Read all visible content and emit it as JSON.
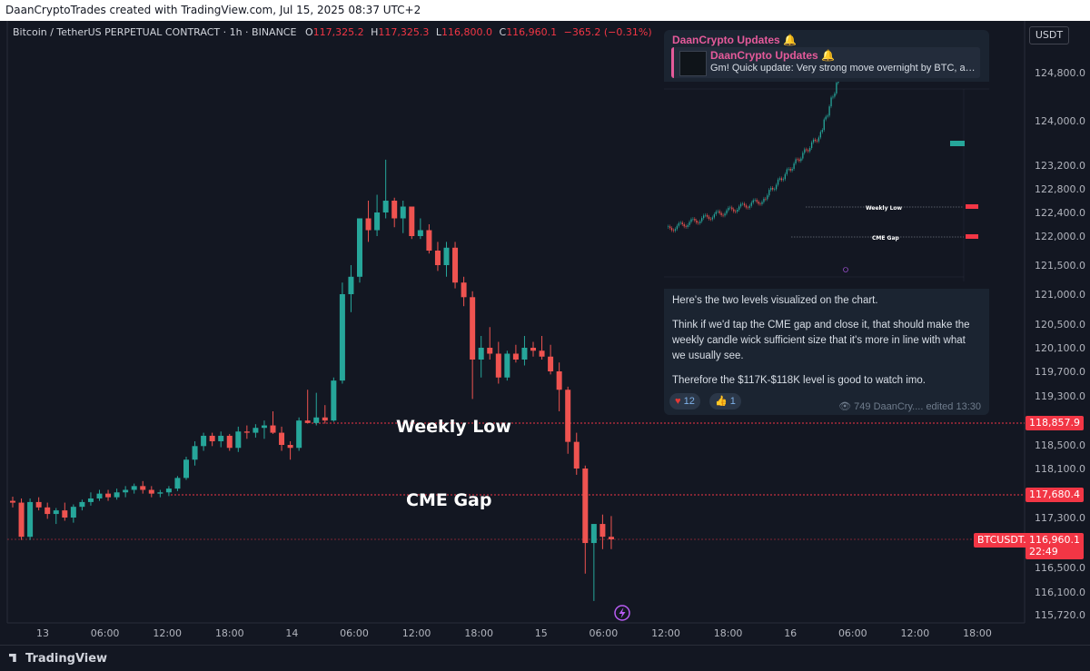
{
  "header": {
    "title": "DaanCryptoTrades created with TradingView.com, Jul 15, 2025 08:37 UTC+2"
  },
  "legend": {
    "symbol": "Bitcoin / TetherUS PERPETUAL CONTRACT · 1h · BINANCE",
    "o_label": "O",
    "o": "117,325.2",
    "h_label": "H",
    "h": "117,325.3",
    "l_label": "L",
    "l": "116,800.0",
    "c_label": "C",
    "c": "116,960.1",
    "change": "−365.2 (−0.31%)"
  },
  "currency_button": "USDT",
  "footer": {
    "brand": "TradingView"
  },
  "annotations": {
    "weekly_low": "Weekly Low",
    "cme_gap": "CME Gap"
  },
  "price_tags": {
    "weekly_low": "118,857.9",
    "cme_gap": "117,680.4",
    "symbol": "BTCUSDT.P",
    "current": "116,960.1",
    "countdown": "22:49"
  },
  "colors": {
    "up": "#26a69a",
    "down": "#ef5350",
    "level": "#f23645",
    "background": "#131722",
    "card_accent": "#e55a9a"
  },
  "icons": {
    "lightning": "lightning-icon",
    "logo": "tradingview-logo-icon",
    "views": "eye-icon",
    "reactions": [
      "heart-icon",
      "thumbs-up-icon"
    ]
  },
  "telegram_card": {
    "channel": "DaanCrypto Updates 🔔",
    "quote_title": "DaanCrypto Updates 🔔",
    "quote_text": "Gm! Quick update:  Very strong move overnight by BTC, al...",
    "message_p1": "Here's the two levels visualized on the chart.",
    "message_p2": "Think if we'd tap the CME gap and close it, that should make the weekly candle wick sufficient size that it's more in line with what we usually see.",
    "message_p3": "Therefore the $117K-$118K level is good to watch imo.",
    "reaction_heart_count": "12",
    "reaction_thumb_count": "1",
    "views": "749",
    "author": "DaanCry....",
    "edited": "edited 13:30",
    "mini_chart_labels": {
      "weekly_low": "Weekly Low",
      "cme_gap": "CME Gap"
    }
  },
  "chart_data": {
    "type": "candlestick",
    "y_ticks": [
      "124,800.0",
      "124,000.0",
      "123,200.0",
      "122,800.0",
      "122,400.0",
      "122,000.0",
      "121,500.0",
      "121,000.0",
      "120,500.0",
      "120,100.0",
      "119,700.0",
      "119,300.0",
      "118,500.0",
      "118,100.0",
      "117,300.0",
      "116,500.0",
      "116,100.0",
      "115,720.0"
    ],
    "x_ticks": [
      "13",
      "06:00",
      "12:00",
      "18:00",
      "14",
      "06:00",
      "12:00",
      "18:00",
      "15",
      "06:00",
      "12:00",
      "18:00",
      "16",
      "06:00",
      "12:00",
      "18:00"
    ],
    "levels": [
      {
        "label": "Weekly Low",
        "value": 118857.9
      },
      {
        "label": "CME Gap",
        "value": 117680.4
      },
      {
        "label": "BTCUSDT.P",
        "value": 116960.1
      }
    ],
    "candles": [
      [
        117580,
        117650,
        117470,
        117550
      ],
      [
        117550,
        117620,
        116950,
        117000
      ],
      [
        117000,
        117620,
        116950,
        117560
      ],
      [
        117560,
        117640,
        117420,
        117470
      ],
      [
        117470,
        117550,
        117280,
        117360
      ],
      [
        117360,
        117460,
        117200,
        117420
      ],
      [
        117420,
        117550,
        117250,
        117300
      ],
      [
        117300,
        117520,
        117220,
        117480
      ],
      [
        117480,
        117600,
        117420,
        117560
      ],
      [
        117560,
        117720,
        117500,
        117620
      ],
      [
        117620,
        117760,
        117580,
        117700
      ],
      [
        117700,
        117760,
        117580,
        117640
      ],
      [
        117640,
        117780,
        117600,
        117720
      ],
      [
        117720,
        117820,
        117640,
        117760
      ],
      [
        117760,
        117860,
        117700,
        117820
      ],
      [
        117820,
        117900,
        117700,
        117760
      ],
      [
        117760,
        117820,
        117640,
        117700
      ],
      [
        117700,
        117760,
        117640,
        117720
      ],
      [
        117720,
        117820,
        117660,
        117780
      ],
      [
        117780,
        117980,
        117740,
        117950
      ],
      [
        117950,
        118300,
        117920,
        118250
      ],
      [
        118250,
        118560,
        118150,
        118480
      ],
      [
        118480,
        118700,
        118400,
        118650
      ],
      [
        118650,
        118700,
        118480,
        118560
      ],
      [
        118560,
        118720,
        118460,
        118650
      ],
      [
        118650,
        118680,
        118400,
        118450
      ],
      [
        118450,
        118800,
        118380,
        118720
      ],
      [
        118720,
        118820,
        118600,
        118700
      ],
      [
        118700,
        118840,
        118620,
        118780
      ],
      [
        118780,
        118900,
        118600,
        118820
      ],
      [
        118820,
        119050,
        118680,
        118700
      ],
      [
        118700,
        118800,
        118400,
        118500
      ],
      [
        118500,
        118560,
        118250,
        118450
      ],
      [
        118450,
        118950,
        118400,
        118900
      ],
      [
        118900,
        119400,
        118850,
        118860
      ],
      [
        118860,
        119350,
        118820,
        118950
      ],
      [
        118950,
        119150,
        118850,
        118900
      ],
      [
        118900,
        119600,
        118880,
        119550
      ],
      [
        119550,
        121200,
        119500,
        121000
      ],
      [
        121000,
        121500,
        120700,
        121300
      ],
      [
        121300,
        122300,
        121200,
        122300
      ],
      [
        122300,
        122600,
        121900,
        122100
      ],
      [
        122100,
        122700,
        122000,
        122400
      ],
      [
        122400,
        123300,
        122300,
        122600
      ],
      [
        122600,
        122650,
        122150,
        122300
      ],
      [
        122300,
        122600,
        122050,
        122500
      ],
      [
        122500,
        122500,
        121950,
        122000
      ],
      [
        122000,
        122300,
        121950,
        122100
      ],
      [
        122100,
        122200,
        121700,
        121750
      ],
      [
        121750,
        121900,
        121400,
        121500
      ],
      [
        121500,
        121900,
        121300,
        121800
      ],
      [
        121800,
        121900,
        121100,
        121200
      ],
      [
        121200,
        121300,
        120800,
        120950
      ],
      [
        120950,
        121050,
        119250,
        119900
      ],
      [
        119900,
        120300,
        119600,
        120100
      ],
      [
        120100,
        120450,
        119900,
        120000
      ],
      [
        120000,
        120200,
        119500,
        119600
      ],
      [
        119600,
        120050,
        119550,
        120000
      ],
      [
        120000,
        120150,
        119850,
        119900
      ],
      [
        119900,
        120300,
        119800,
        120100
      ],
      [
        120100,
        120200,
        119950,
        120050
      ],
      [
        120050,
        120300,
        119900,
        119950
      ],
      [
        119950,
        120150,
        119650,
        119700
      ],
      [
        119700,
        119850,
        119050,
        119400
      ],
      [
        119400,
        119450,
        118350,
        118550
      ],
      [
        118550,
        118700,
        118000,
        118100
      ],
      [
        118100,
        118150,
        116400,
        116900
      ],
      [
        116900,
        117200,
        115950,
        117200
      ],
      [
        117200,
        117350,
        116800,
        117000
      ],
      [
        117000,
        117325,
        116800,
        116960
      ]
    ]
  }
}
